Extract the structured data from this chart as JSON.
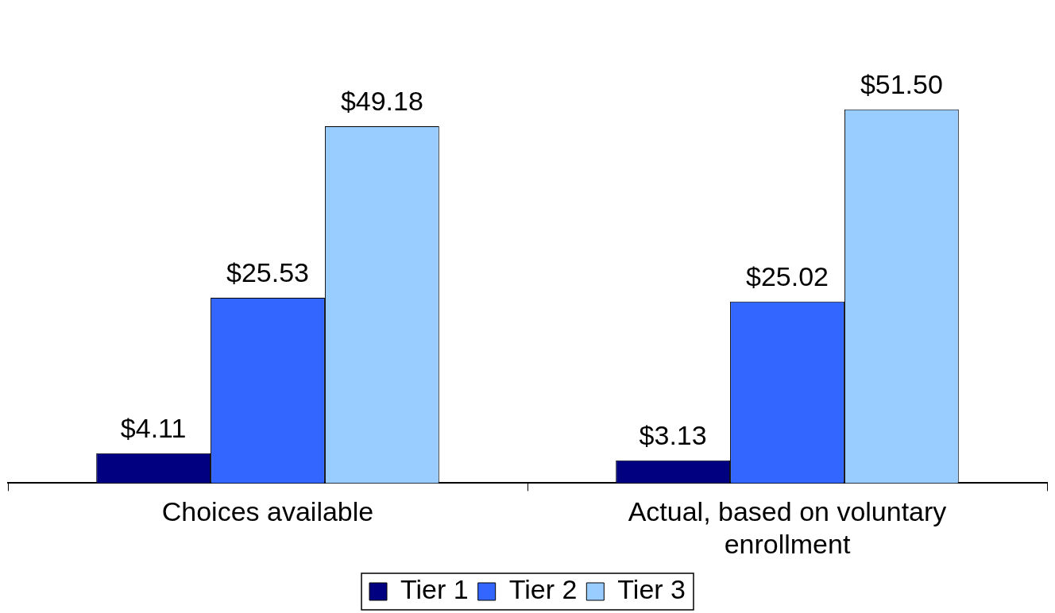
{
  "chart_data": {
    "type": "bar",
    "categories": [
      "Choices available",
      "Actual, based on voluntary enrollment"
    ],
    "series": [
      {
        "name": "Tier 1",
        "color": "#000080",
        "values": [
          4.11,
          3.13
        ],
        "value_labels": [
          "$4.11",
          "$3.13"
        ]
      },
      {
        "name": "Tier 2",
        "color": "#3366ff",
        "values": [
          25.53,
          25.02
        ],
        "value_labels": [
          "$25.53",
          "$25.02"
        ]
      },
      {
        "name": "Tier 3",
        "color": "#99ccff",
        "values": [
          49.18,
          51.5
        ],
        "value_labels": [
          "$49.18",
          "$51.50"
        ]
      }
    ],
    "legend": "bottom"
  }
}
